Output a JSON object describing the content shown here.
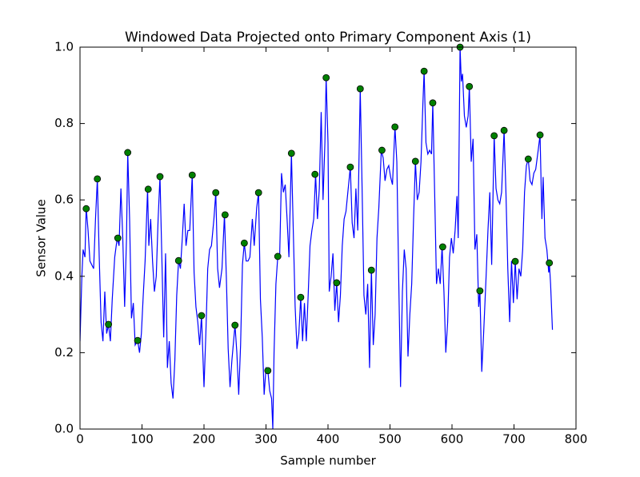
{
  "chart_data": {
    "type": "line",
    "title": "Windowed Data Projected onto Primary Component Axis (1)",
    "xlabel": "Sample number",
    "ylabel": "Sensor Value",
    "xlim": [
      0,
      800
    ],
    "xticks": [
      0,
      100,
      200,
      300,
      400,
      500,
      600,
      700,
      800
    ],
    "ylim": [
      0,
      1
    ],
    "yticks": [
      {
        "value": 0,
        "label": "0.0"
      },
      {
        "value": 0.2,
        "label": "0.2"
      },
      {
        "value": 0.4,
        "label": "0.4"
      },
      {
        "value": 0.6,
        "label": "0.6"
      },
      {
        "value": 0.8,
        "label": "0.8"
      },
      {
        "value": 1,
        "label": "1.0"
      }
    ],
    "series": [
      {
        "color": "#0000ff",
        "marker": "none",
        "x": [
          0,
          3,
          5,
          8,
          10,
          13,
          16,
          19,
          22,
          25,
          28,
          31,
          34,
          37,
          40,
          43,
          46,
          49,
          52,
          56,
          60,
          63,
          66,
          69,
          72,
          75,
          77,
          80,
          83,
          86,
          89,
          93,
          96,
          99,
          102,
          105,
          109,
          111,
          114,
          117,
          120,
          123,
          126,
          129,
          132,
          135,
          138,
          141,
          144,
          147,
          150,
          153,
          156,
          159,
          162,
          165,
          168,
          171,
          174,
          177,
          181,
          184,
          187,
          190,
          193,
          196,
          200,
          203,
          206,
          209,
          212,
          216,
          219,
          222,
          225,
          229,
          233,
          236,
          239,
          242,
          245,
          250,
          253,
          256,
          259,
          262,
          265,
          268,
          271,
          274,
          278,
          281,
          285,
          288,
          291,
          294,
          297,
          300,
          303,
          306,
          309,
          311,
          313,
          316,
          319,
          322,
          325,
          328,
          331,
          334,
          337,
          341,
          344,
          347,
          350,
          353,
          356,
          359,
          362,
          365,
          368,
          371,
          374,
          377,
          380,
          383,
          386,
          389,
          392,
          395,
          397,
          400,
          402,
          405,
          408,
          411,
          414,
          417,
          420,
          423,
          426,
          429,
          432,
          436,
          439,
          442,
          445,
          448,
          452,
          455,
          458,
          461,
          464,
          467,
          470,
          473,
          476,
          479,
          482,
          486,
          489,
          492,
          495,
          498,
          501,
          504,
          508,
          511,
          514,
          517,
          520,
          523,
          526,
          529,
          532,
          535,
          538,
          541,
          544,
          547,
          550,
          553,
          555,
          558,
          561,
          564,
          567,
          569,
          572,
          575,
          578,
          581,
          584,
          587,
          590,
          593,
          596,
          599,
          602,
          605,
          608,
          610,
          613,
          615,
          617,
          620,
          623,
          626,
          628,
          631,
          634,
          637,
          640,
          643,
          645,
          648,
          651,
          655,
          658,
          661,
          664,
          668,
          671,
          674,
          677,
          680,
          684,
          687,
          690,
          693,
          696,
          699,
          702,
          705,
          708,
          711,
          714,
          717,
          720,
          723,
          726,
          729,
          732,
          735,
          739,
          742,
          745,
          747,
          750,
          753,
          756,
          757,
          759,
          762
        ],
        "values": [
          0.23,
          0.4,
          0.47,
          0.45,
          0.58,
          0.52,
          0.44,
          0.43,
          0.42,
          0.55,
          0.655,
          0.45,
          0.28,
          0.23,
          0.36,
          0.25,
          0.274,
          0.23,
          0.34,
          0.45,
          0.5,
          0.48,
          0.63,
          0.5,
          0.32,
          0.5,
          0.724,
          0.55,
          0.29,
          0.33,
          0.22,
          0.232,
          0.2,
          0.25,
          0.35,
          0.44,
          0.628,
          0.48,
          0.55,
          0.44,
          0.36,
          0.4,
          0.55,
          0.661,
          0.45,
          0.24,
          0.46,
          0.16,
          0.23,
          0.12,
          0.08,
          0.18,
          0.35,
          0.441,
          0.42,
          0.5,
          0.59,
          0.48,
          0.52,
          0.52,
          0.665,
          0.41,
          0.32,
          0.28,
          0.22,
          0.297,
          0.11,
          0.25,
          0.42,
          0.47,
          0.48,
          0.55,
          0.619,
          0.42,
          0.37,
          0.42,
          0.561,
          0.4,
          0.21,
          0.11,
          0.18,
          0.272,
          0.2,
          0.09,
          0.22,
          0.43,
          0.487,
          0.44,
          0.44,
          0.45,
          0.55,
          0.48,
          0.58,
          0.619,
          0.34,
          0.24,
          0.09,
          0.16,
          0.153,
          0.1,
          0.08,
          0.0,
          0.2,
          0.38,
          0.452,
          0.45,
          0.67,
          0.62,
          0.64,
          0.55,
          0.45,
          0.722,
          0.52,
          0.32,
          0.21,
          0.25,
          0.345,
          0.23,
          0.33,
          0.23,
          0.35,
          0.48,
          0.52,
          0.55,
          0.667,
          0.55,
          0.63,
          0.83,
          0.6,
          0.75,
          0.92,
          0.75,
          0.36,
          0.4,
          0.46,
          0.31,
          0.383,
          0.28,
          0.35,
          0.48,
          0.55,
          0.57,
          0.62,
          0.686,
          0.54,
          0.5,
          0.63,
          0.52,
          0.891,
          0.63,
          0.35,
          0.3,
          0.38,
          0.16,
          0.416,
          0.22,
          0.3,
          0.5,
          0.58,
          0.73,
          0.71,
          0.65,
          0.68,
          0.69,
          0.66,
          0.64,
          0.791,
          0.7,
          0.4,
          0.11,
          0.36,
          0.47,
          0.42,
          0.19,
          0.3,
          0.38,
          0.55,
          0.701,
          0.6,
          0.62,
          0.7,
          0.85,
          0.937,
          0.75,
          0.72,
          0.73,
          0.72,
          0.854,
          0.62,
          0.38,
          0.42,
          0.38,
          0.477,
          0.36,
          0.2,
          0.28,
          0.45,
          0.5,
          0.46,
          0.52,
          0.61,
          0.5,
          1.0,
          0.91,
          0.93,
          0.82,
          0.79,
          0.82,
          0.897,
          0.7,
          0.76,
          0.47,
          0.51,
          0.32,
          0.362,
          0.15,
          0.25,
          0.4,
          0.52,
          0.62,
          0.43,
          0.768,
          0.63,
          0.6,
          0.59,
          0.62,
          0.782,
          0.62,
          0.42,
          0.28,
          0.44,
          0.33,
          0.439,
          0.34,
          0.42,
          0.4,
          0.47,
          0.62,
          0.69,
          0.707,
          0.65,
          0.64,
          0.67,
          0.68,
          0.73,
          0.77,
          0.55,
          0.66,
          0.5,
          0.47,
          0.41,
          0.435,
          0.38,
          0.26
        ]
      },
      {
        "color": "#008000",
        "marker": "o",
        "x": [
          10,
          28,
          46,
          61,
          77,
          93,
          110,
          129,
          159,
          181,
          196,
          219,
          234,
          250,
          265,
          288,
          303,
          319,
          341,
          356,
          379,
          397,
          414,
          436,
          452,
          470,
          487,
          508,
          541,
          555,
          569,
          585,
          613,
          628,
          645,
          668,
          684,
          702,
          723,
          742,
          757
        ],
        "values": [
          0.577,
          0.655,
          0.274,
          0.5,
          0.724,
          0.232,
          0.628,
          0.661,
          0.441,
          0.665,
          0.297,
          0.619,
          0.561,
          0.272,
          0.487,
          0.619,
          0.153,
          0.452,
          0.722,
          0.345,
          0.667,
          0.92,
          0.383,
          0.686,
          0.891,
          0.416,
          0.73,
          0.791,
          0.701,
          0.937,
          0.854,
          0.477,
          1.0,
          0.897,
          0.362,
          0.768,
          0.782,
          0.439,
          0.707,
          0.77,
          0.435
        ]
      }
    ]
  }
}
